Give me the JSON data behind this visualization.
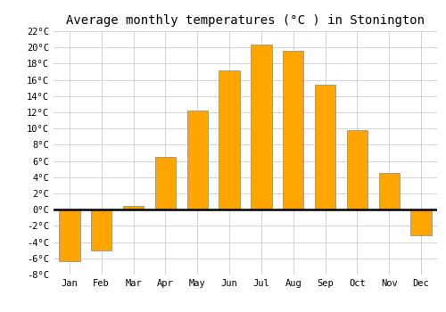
{
  "title": "Average monthly temperatures (°C ) in Stonington",
  "months": [
    "Jan",
    "Feb",
    "Mar",
    "Apr",
    "May",
    "Jun",
    "Jul",
    "Aug",
    "Sep",
    "Oct",
    "Nov",
    "Dec"
  ],
  "values": [
    -6.3,
    -5.0,
    0.5,
    6.5,
    12.2,
    17.2,
    20.4,
    19.6,
    15.4,
    9.8,
    4.5,
    -3.2
  ],
  "bar_color": "#FFA500",
  "bar_edge_color": "#888888",
  "ylim": [
    -8,
    22
  ],
  "yticks": [
    -8,
    -6,
    -4,
    -2,
    0,
    2,
    4,
    6,
    8,
    10,
    12,
    14,
    16,
    18,
    20,
    22
  ],
  "ytick_labels": [
    "-8°C",
    "-6°C",
    "-4°C",
    "-2°C",
    "0°C",
    "2°C",
    "4°C",
    "6°C",
    "8°C",
    "10°C",
    "12°C",
    "14°C",
    "16°C",
    "18°C",
    "20°C",
    "22°C"
  ],
  "grid_color": "#cccccc",
  "background_color": "#ffffff",
  "title_fontsize": 10,
  "tick_fontsize": 7.5,
  "bar_width": 0.65
}
